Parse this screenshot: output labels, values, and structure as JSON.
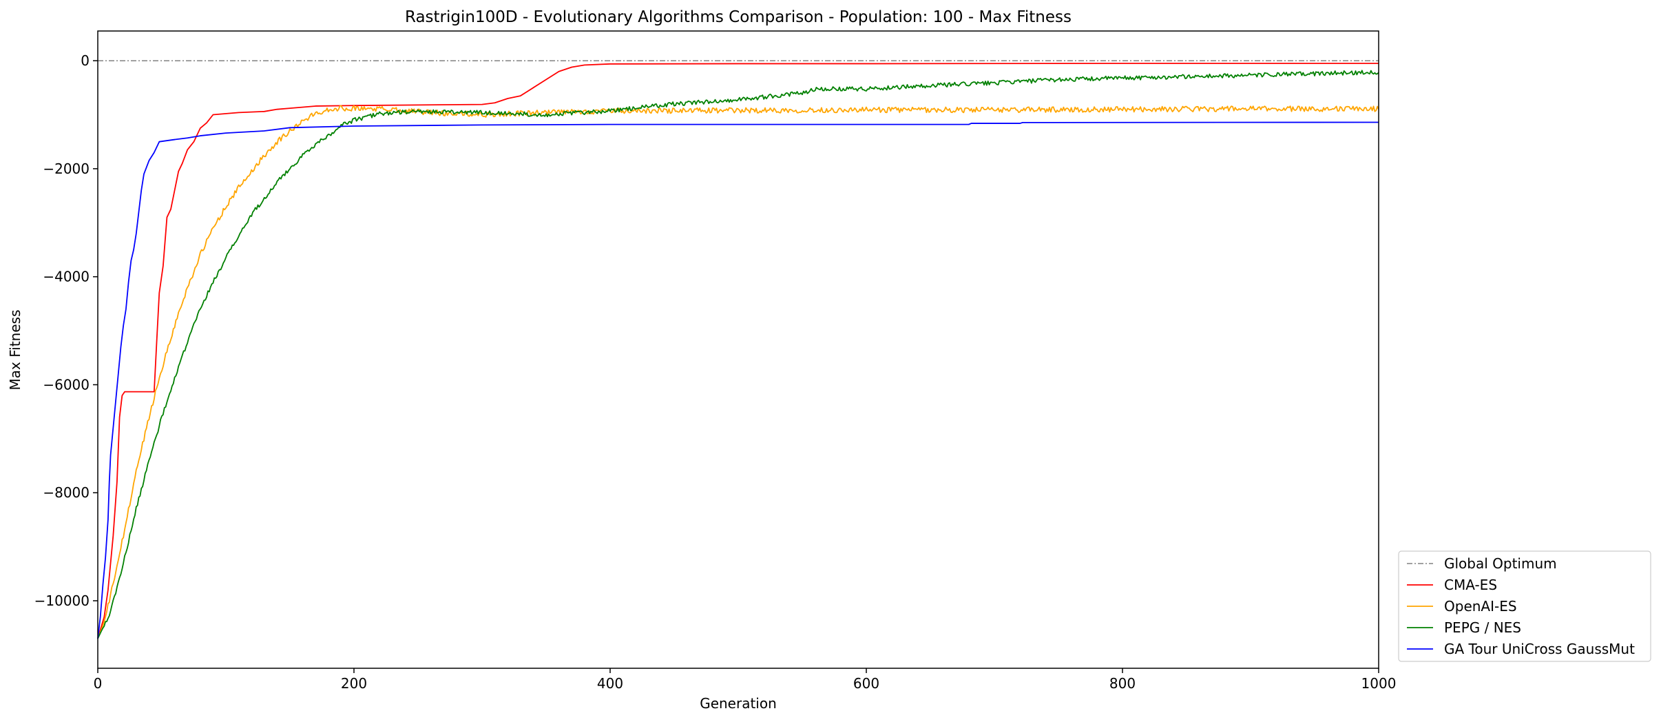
{
  "chart_data": {
    "type": "line",
    "title": "Rastrigin100D - Evolutionary Algorithms Comparison - Population: 100 - Max Fitness",
    "xlabel": "Generation",
    "ylabel": "Max Fitness",
    "xlim": [
      0,
      1000
    ],
    "ylim": [
      -11250,
      550
    ],
    "x_ticks": [
      0,
      200,
      400,
      600,
      800,
      1000
    ],
    "x_tick_labels": [
      "0",
      "200",
      "400",
      "600",
      "800",
      "1000"
    ],
    "y_ticks": [
      0,
      -2000,
      -4000,
      -6000,
      -8000,
      -10000
    ],
    "y_tick_labels": [
      "0",
      "−2000",
      "−4000",
      "−6000",
      "−8000",
      "−10000"
    ],
    "grid": false,
    "legend_position": "outside-lower-right",
    "series": [
      {
        "name": "Global Optimum",
        "color": "#404040",
        "style": "dashdot",
        "points": [
          [
            0,
            0
          ],
          [
            1000,
            0
          ]
        ]
      },
      {
        "name": "CMA-ES",
        "color": "#ff0000",
        "style": "solid",
        "noise": 0,
        "points": [
          [
            0,
            -10700
          ],
          [
            5,
            -10300
          ],
          [
            8,
            -9800
          ],
          [
            12,
            -8800
          ],
          [
            15,
            -7800
          ],
          [
            17,
            -6600
          ],
          [
            19,
            -6200
          ],
          [
            21,
            -6130
          ],
          [
            40,
            -6130
          ],
          [
            44,
            -6130
          ],
          [
            46,
            -5200
          ],
          [
            48,
            -4300
          ],
          [
            51,
            -3800
          ],
          [
            54,
            -2900
          ],
          [
            57,
            -2750
          ],
          [
            60,
            -2400
          ],
          [
            63,
            -2050
          ],
          [
            66,
            -1900
          ],
          [
            70,
            -1650
          ],
          [
            75,
            -1500
          ],
          [
            80,
            -1250
          ],
          [
            85,
            -1150
          ],
          [
            90,
            -1000
          ],
          [
            110,
            -960
          ],
          [
            130,
            -940
          ],
          [
            140,
            -900
          ],
          [
            150,
            -880
          ],
          [
            170,
            -840
          ],
          [
            200,
            -830
          ],
          [
            250,
            -820
          ],
          [
            300,
            -810
          ],
          [
            310,
            -780
          ],
          [
            320,
            -700
          ],
          [
            330,
            -650
          ],
          [
            340,
            -500
          ],
          [
            350,
            -350
          ],
          [
            360,
            -200
          ],
          [
            370,
            -120
          ],
          [
            380,
            -80
          ],
          [
            400,
            -60
          ],
          [
            500,
            -55
          ],
          [
            600,
            -55
          ],
          [
            800,
            -50
          ],
          [
            1000,
            -50
          ]
        ]
      },
      {
        "name": "OpenAI-ES",
        "color": "#ffa500",
        "style": "solid",
        "noise": 50,
        "points": [
          [
            0,
            -10700
          ],
          [
            5,
            -10400
          ],
          [
            10,
            -9900
          ],
          [
            20,
            -8800
          ],
          [
            30,
            -7600
          ],
          [
            40,
            -6600
          ],
          [
            50,
            -5700
          ],
          [
            60,
            -4900
          ],
          [
            70,
            -4200
          ],
          [
            80,
            -3600
          ],
          [
            90,
            -3100
          ],
          [
            100,
            -2700
          ],
          [
            110,
            -2350
          ],
          [
            120,
            -2050
          ],
          [
            130,
            -1750
          ],
          [
            140,
            -1500
          ],
          [
            150,
            -1300
          ],
          [
            160,
            -1120
          ],
          [
            170,
            -980
          ],
          [
            180,
            -900
          ],
          [
            190,
            -880
          ],
          [
            200,
            -880
          ],
          [
            230,
            -900
          ],
          [
            260,
            -960
          ],
          [
            300,
            -1000
          ],
          [
            350,
            -960
          ],
          [
            400,
            -930
          ],
          [
            500,
            -920
          ],
          [
            600,
            -910
          ],
          [
            700,
            -910
          ],
          [
            800,
            -900
          ],
          [
            900,
            -890
          ],
          [
            1000,
            -890
          ]
        ]
      },
      {
        "name": "PEPG / NES",
        "color": "#008000",
        "style": "solid",
        "noise": 40,
        "points": [
          [
            0,
            -10700
          ],
          [
            10,
            -10200
          ],
          [
            20,
            -9300
          ],
          [
            30,
            -8300
          ],
          [
            40,
            -7400
          ],
          [
            50,
            -6600
          ],
          [
            60,
            -5900
          ],
          [
            70,
            -5200
          ],
          [
            80,
            -4600
          ],
          [
            90,
            -4100
          ],
          [
            100,
            -3650
          ],
          [
            110,
            -3250
          ],
          [
            120,
            -2850
          ],
          [
            130,
            -2550
          ],
          [
            140,
            -2250
          ],
          [
            150,
            -2000
          ],
          [
            160,
            -1750
          ],
          [
            170,
            -1550
          ],
          [
            180,
            -1380
          ],
          [
            190,
            -1200
          ],
          [
            200,
            -1100
          ],
          [
            220,
            -980
          ],
          [
            250,
            -940
          ],
          [
            300,
            -960
          ],
          [
            350,
            -1000
          ],
          [
            400,
            -930
          ],
          [
            450,
            -800
          ],
          [
            500,
            -720
          ],
          [
            550,
            -600
          ],
          [
            560,
            -520
          ],
          [
            600,
            -520
          ],
          [
            650,
            -460
          ],
          [
            700,
            -410
          ],
          [
            750,
            -350
          ],
          [
            800,
            -320
          ],
          [
            900,
            -270
          ],
          [
            1000,
            -210
          ]
        ]
      },
      {
        "name": "GA Tour UniCross GaussMut",
        "color": "#0000ff",
        "style": "solid",
        "noise": 0,
        "points": [
          [
            0,
            -10700
          ],
          [
            2,
            -10300
          ],
          [
            4,
            -9700
          ],
          [
            6,
            -9200
          ],
          [
            8,
            -8500
          ],
          [
            9,
            -7800
          ],
          [
            10,
            -7300
          ],
          [
            12,
            -6800
          ],
          [
            14,
            -6300
          ],
          [
            16,
            -5800
          ],
          [
            18,
            -5300
          ],
          [
            20,
            -4900
          ],
          [
            22,
            -4600
          ],
          [
            24,
            -4100
          ],
          [
            26,
            -3700
          ],
          [
            28,
            -3500
          ],
          [
            30,
            -3200
          ],
          [
            32,
            -2800
          ],
          [
            34,
            -2400
          ],
          [
            36,
            -2100
          ],
          [
            40,
            -1850
          ],
          [
            44,
            -1700
          ],
          [
            48,
            -1500
          ],
          [
            60,
            -1460
          ],
          [
            70,
            -1430
          ],
          [
            80,
            -1390
          ],
          [
            100,
            -1340
          ],
          [
            130,
            -1300
          ],
          [
            150,
            -1240
          ],
          [
            200,
            -1210
          ],
          [
            300,
            -1190
          ],
          [
            400,
            -1180
          ],
          [
            500,
            -1180
          ],
          [
            600,
            -1180
          ],
          [
            680,
            -1180
          ],
          [
            682,
            -1160
          ],
          [
            720,
            -1160
          ],
          [
            722,
            -1145
          ],
          [
            1000,
            -1140
          ]
        ]
      }
    ]
  }
}
